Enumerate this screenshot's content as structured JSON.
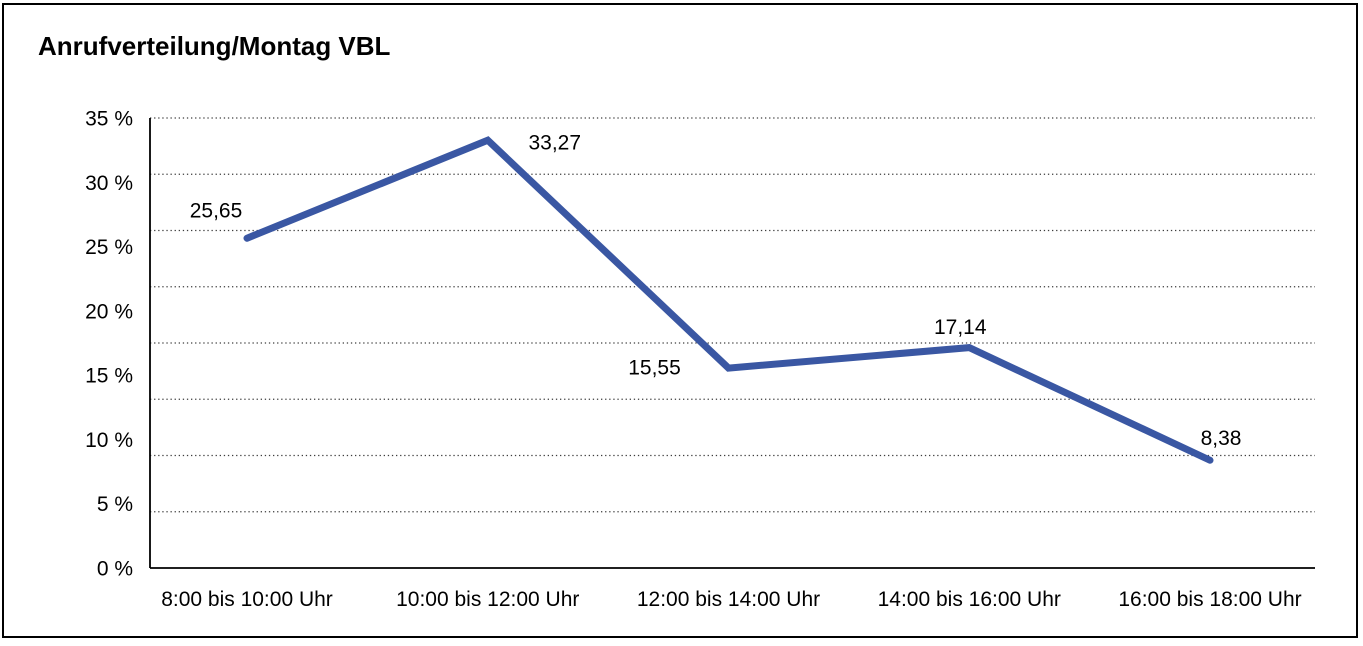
{
  "chart_data": {
    "type": "line",
    "title": "Anrufverteilung/Montag VBL",
    "categories": [
      "8:00 bis 10:00 Uhr",
      "10:00 bis 12:00 Uhr",
      "12:00 bis 14:00 Uhr",
      "14:00 bis 16:00 Uhr",
      "16:00 bis 18:00 Uhr"
    ],
    "values": [
      25.65,
      33.27,
      15.55,
      17.14,
      8.38
    ],
    "point_labels": [
      "25,65",
      "33,27",
      "15,55",
      "17,14",
      "8,38"
    ],
    "y_ticks": [
      "0 %",
      "5 %",
      "10 %",
      "15 %",
      "20 %",
      "25 %",
      "30 %",
      "35 %"
    ],
    "ylim": [
      0,
      35
    ],
    "y_tick_step": 5,
    "xlabel": "",
    "ylabel": "",
    "legend": "none",
    "grid": "dotted-horizontal",
    "line_color": "#3A57A3",
    "text_color": "#000000",
    "axis_color": "#000000",
    "grid_color": "#3d3d3d"
  }
}
